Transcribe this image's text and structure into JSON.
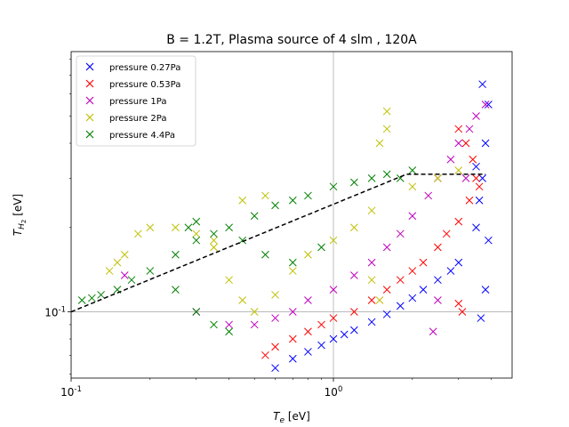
{
  "chart_data": {
    "type": "scatter",
    "title": "B = 1.2T, Plasma source of 4 slm , 120A",
    "xlabel": "T_e [eV]",
    "ylabel": "T_H2 [eV]",
    "xscale": "log",
    "yscale": "log",
    "xlim": [
      0.1,
      4.8
    ],
    "ylim": [
      0.058,
      0.85
    ],
    "xticks": [
      {
        "value": 0.1,
        "label": "10^-1"
      },
      {
        "value": 1.0,
        "label": "10^0"
      }
    ],
    "yticks": [
      {
        "value": 0.1,
        "label": "10^-1"
      }
    ],
    "grid": true,
    "legend_position": "upper-left",
    "series": [
      {
        "name": "pressure 0.27Pa",
        "color": "#0000ff",
        "marker": "x",
        "points": [
          [
            0.6,
            0.063
          ],
          [
            0.7,
            0.068
          ],
          [
            0.8,
            0.072
          ],
          [
            0.9,
            0.076
          ],
          [
            1.0,
            0.08
          ],
          [
            1.1,
            0.083
          ],
          [
            1.2,
            0.086
          ],
          [
            1.4,
            0.092
          ],
          [
            1.6,
            0.098
          ],
          [
            1.8,
            0.105
          ],
          [
            2.0,
            0.112
          ],
          [
            2.2,
            0.12
          ],
          [
            2.5,
            0.13
          ],
          [
            2.8,
            0.14
          ],
          [
            3.0,
            0.15
          ],
          [
            3.5,
            0.2
          ],
          [
            3.6,
            0.25
          ],
          [
            3.7,
            0.3
          ],
          [
            3.8,
            0.4
          ],
          [
            3.9,
            0.55
          ],
          [
            3.7,
            0.65
          ],
          [
            3.8,
            0.12
          ],
          [
            3.65,
            0.095
          ],
          [
            3.9,
            0.18
          ],
          [
            3.5,
            0.33
          ]
        ]
      },
      {
        "name": "pressure 0.53Pa",
        "color": "#ff0000",
        "marker": "x",
        "points": [
          [
            0.55,
            0.07
          ],
          [
            0.6,
            0.075
          ],
          [
            0.7,
            0.08
          ],
          [
            0.8,
            0.085
          ],
          [
            0.9,
            0.09
          ],
          [
            1.0,
            0.095
          ],
          [
            1.2,
            0.1
          ],
          [
            1.4,
            0.11
          ],
          [
            1.6,
            0.12
          ],
          [
            1.8,
            0.13
          ],
          [
            2.0,
            0.14
          ],
          [
            2.2,
            0.15
          ],
          [
            2.5,
            0.17
          ],
          [
            2.7,
            0.19
          ],
          [
            3.0,
            0.21
          ],
          [
            3.3,
            0.25
          ],
          [
            3.5,
            0.3
          ],
          [
            3.4,
            0.35
          ],
          [
            3.2,
            0.4
          ],
          [
            3.0,
            0.45
          ],
          [
            3.6,
            0.28
          ],
          [
            3.1,
            0.1
          ],
          [
            3.0,
            0.107
          ]
        ]
      },
      {
        "name": "pressure 1Pa",
        "color": "#bf00bf",
        "marker": "x",
        "points": [
          [
            0.16,
            0.135
          ],
          [
            0.3,
            0.1
          ],
          [
            0.4,
            0.09
          ],
          [
            0.5,
            0.09
          ],
          [
            0.6,
            0.095
          ],
          [
            0.7,
            0.1
          ],
          [
            0.8,
            0.11
          ],
          [
            1.0,
            0.12
          ],
          [
            1.2,
            0.135
          ],
          [
            1.4,
            0.15
          ],
          [
            1.6,
            0.17
          ],
          [
            1.8,
            0.19
          ],
          [
            2.0,
            0.22
          ],
          [
            2.3,
            0.26
          ],
          [
            2.5,
            0.3
          ],
          [
            2.8,
            0.35
          ],
          [
            3.0,
            0.4
          ],
          [
            3.3,
            0.45
          ],
          [
            3.5,
            0.5
          ],
          [
            3.8,
            0.55
          ],
          [
            2.5,
            0.11
          ],
          [
            2.4,
            0.085
          ],
          [
            3.2,
            0.3
          ]
        ]
      },
      {
        "name": "pressure 2Pa",
        "color": "#bfbf00",
        "marker": "x",
        "points": [
          [
            0.14,
            0.14
          ],
          [
            0.15,
            0.15
          ],
          [
            0.16,
            0.16
          ],
          [
            0.18,
            0.19
          ],
          [
            0.2,
            0.2
          ],
          [
            0.25,
            0.2
          ],
          [
            0.3,
            0.19
          ],
          [
            0.35,
            0.17
          ],
          [
            0.4,
            0.13
          ],
          [
            0.45,
            0.11
          ],
          [
            0.5,
            0.1
          ],
          [
            0.6,
            0.115
          ],
          [
            0.7,
            0.14
          ],
          [
            0.8,
            0.16
          ],
          [
            1.0,
            0.18
          ],
          [
            1.2,
            0.2
          ],
          [
            1.4,
            0.23
          ],
          [
            1.5,
            0.4
          ],
          [
            1.6,
            0.45
          ],
          [
            1.6,
            0.52
          ],
          [
            1.4,
            0.13
          ],
          [
            1.5,
            0.11
          ],
          [
            2.0,
            0.28
          ],
          [
            2.5,
            0.3
          ],
          [
            3.0,
            0.32
          ],
          [
            0.55,
            0.26
          ],
          [
            0.45,
            0.25
          ],
          [
            0.35,
            0.18
          ]
        ]
      },
      {
        "name": "pressure 4.4Pa",
        "color": "#008000",
        "marker": "x",
        "points": [
          [
            0.11,
            0.11
          ],
          [
            0.12,
            0.112
          ],
          [
            0.13,
            0.115
          ],
          [
            0.15,
            0.12
          ],
          [
            0.17,
            0.13
          ],
          [
            0.2,
            0.14
          ],
          [
            0.25,
            0.16
          ],
          [
            0.3,
            0.18
          ],
          [
            0.35,
            0.19
          ],
          [
            0.4,
            0.2
          ],
          [
            0.5,
            0.22
          ],
          [
            0.6,
            0.24
          ],
          [
            0.7,
            0.25
          ],
          [
            0.8,
            0.26
          ],
          [
            1.0,
            0.28
          ],
          [
            1.2,
            0.29
          ],
          [
            1.4,
            0.3
          ],
          [
            1.6,
            0.31
          ],
          [
            1.8,
            0.3
          ],
          [
            2.0,
            0.32
          ],
          [
            0.25,
            0.12
          ],
          [
            0.3,
            0.1
          ],
          [
            0.35,
            0.09
          ],
          [
            0.4,
            0.085
          ],
          [
            0.3,
            0.21
          ],
          [
            0.28,
            0.2
          ],
          [
            0.45,
            0.18
          ],
          [
            0.55,
            0.16
          ],
          [
            0.7,
            0.15
          ],
          [
            0.9,
            0.17
          ]
        ]
      }
    ],
    "reference_line": {
      "style": "dashed",
      "color": "#000000",
      "points": [
        [
          0.1,
          0.1
        ],
        [
          1.9,
          0.31
        ],
        [
          3.8,
          0.31
        ]
      ]
    }
  }
}
